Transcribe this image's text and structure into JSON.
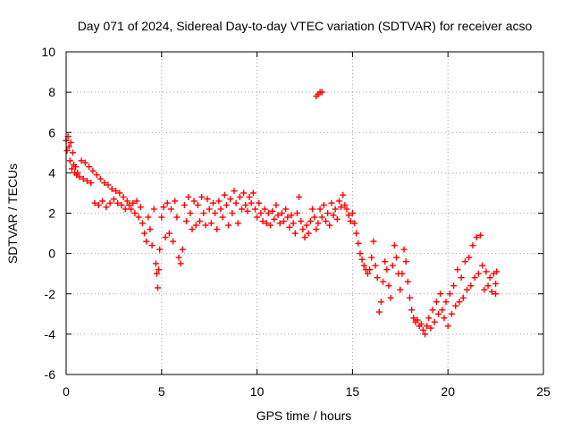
{
  "chart_data": {
    "type": "scatter",
    "title": "Day 071 of 2024, Sidereal Day-to-day VTEC variation (SDTVAR) for receiver acso",
    "xlabel": "GPS time / hours",
    "ylabel": "SDTVAR / TECUs",
    "xlim": [
      0,
      25
    ],
    "ylim": [
      -6,
      10
    ],
    "xticks": [
      0,
      5,
      10,
      15,
      20,
      25
    ],
    "yticks": [
      -6,
      -4,
      -2,
      0,
      2,
      4,
      6,
      8,
      10
    ],
    "xtick_labels": [
      "0",
      "5",
      "10",
      "15",
      "20",
      "25"
    ],
    "ytick_labels": [
      "-6",
      "-4",
      "-2",
      "0",
      "2",
      "4",
      "6",
      "8",
      "10"
    ],
    "grid": true,
    "marker": "+",
    "series": [
      {
        "name": "SDTVAR",
        "color": "#ff0000",
        "points": [
          [
            0.0,
            5.6
          ],
          [
            0.05,
            5.1
          ],
          [
            0.1,
            5.8
          ],
          [
            0.15,
            5.3
          ],
          [
            0.2,
            4.6
          ],
          [
            0.25,
            5.5
          ],
          [
            0.3,
            4.2
          ],
          [
            0.35,
            5.0
          ],
          [
            0.4,
            4.4
          ],
          [
            0.45,
            4.0
          ],
          [
            0.5,
            4.3
          ],
          [
            0.55,
            3.9
          ],
          [
            0.6,
            4.0
          ],
          [
            0.7,
            3.8
          ],
          [
            0.8,
            4.6
          ],
          [
            0.9,
            3.7
          ],
          [
            1.0,
            4.5
          ],
          [
            1.1,
            3.6
          ],
          [
            1.2,
            4.3
          ],
          [
            1.3,
            3.5
          ],
          [
            1.4,
            4.1
          ],
          [
            1.5,
            2.5
          ],
          [
            1.6,
            3.9
          ],
          [
            1.7,
            2.4
          ],
          [
            1.8,
            3.7
          ],
          [
            1.9,
            2.6
          ],
          [
            2.0,
            3.5
          ],
          [
            2.1,
            2.3
          ],
          [
            2.2,
            3.4
          ],
          [
            2.3,
            2.5
          ],
          [
            2.4,
            3.2
          ],
          [
            2.5,
            2.7
          ],
          [
            2.6,
            3.1
          ],
          [
            2.7,
            2.5
          ],
          [
            2.8,
            3.0
          ],
          [
            2.9,
            2.4
          ],
          [
            3.0,
            2.8
          ],
          [
            3.1,
            2.2
          ],
          [
            3.2,
            2.6
          ],
          [
            3.3,
            2.4
          ],
          [
            3.4,
            2.2
          ],
          [
            3.5,
            2.5
          ],
          [
            3.6,
            2.0
          ],
          [
            3.7,
            2.6
          ],
          [
            3.8,
            1.8
          ],
          [
            3.9,
            2.3
          ],
          [
            4.0,
            1.5
          ],
          [
            4.1,
            1.0
          ],
          [
            4.2,
            0.6
          ],
          [
            4.3,
            1.8
          ],
          [
            4.4,
            1.2
          ],
          [
            4.5,
            0.4
          ],
          [
            4.6,
            2.2
          ],
          [
            4.7,
            -0.5
          ],
          [
            4.75,
            -1.0
          ],
          [
            4.8,
            -1.7
          ],
          [
            4.85,
            -0.8
          ],
          [
            4.9,
            0.2
          ],
          [
            5.0,
            1.8
          ],
          [
            5.1,
            2.3
          ],
          [
            5.2,
            0.8
          ],
          [
            5.3,
            2.5
          ],
          [
            5.4,
            1.0
          ],
          [
            5.5,
            2.2
          ],
          [
            5.6,
            0.6
          ],
          [
            5.7,
            2.6
          ],
          [
            5.8,
            1.8
          ],
          [
            5.9,
            -0.2
          ],
          [
            6.0,
            -0.5
          ],
          [
            6.1,
            0.2
          ],
          [
            6.2,
            2.4
          ],
          [
            6.3,
            1.6
          ],
          [
            6.4,
            2.8
          ],
          [
            6.5,
            2.0
          ],
          [
            6.6,
            1.2
          ],
          [
            6.7,
            2.6
          ],
          [
            6.8,
            1.4
          ],
          [
            6.9,
            2.4
          ],
          [
            7.0,
            1.6
          ],
          [
            7.1,
            2.8
          ],
          [
            7.2,
            2.0
          ],
          [
            7.3,
            1.4
          ],
          [
            7.4,
            2.7
          ],
          [
            7.5,
            2.2
          ],
          [
            7.6,
            1.5
          ],
          [
            7.7,
            2.5
          ],
          [
            7.8,
            2.0
          ],
          [
            7.9,
            1.2
          ],
          [
            8.0,
            2.6
          ],
          [
            8.1,
            2.2
          ],
          [
            8.2,
            1.8
          ],
          [
            8.3,
            2.9
          ],
          [
            8.4,
            2.4
          ],
          [
            8.5,
            1.4
          ],
          [
            8.6,
            2.7
          ],
          [
            8.7,
            2.0
          ],
          [
            8.8,
            3.1
          ],
          [
            8.9,
            2.5
          ],
          [
            9.0,
            1.5
          ],
          [
            9.1,
            2.8
          ],
          [
            9.2,
            2.2
          ],
          [
            9.3,
            3.0
          ],
          [
            9.4,
            2.4
          ],
          [
            9.5,
            2.1
          ],
          [
            9.6,
            2.8
          ],
          [
            9.7,
            2.5
          ],
          [
            9.8,
            3.0
          ],
          [
            9.9,
            2.2
          ],
          [
            10.0,
            1.8
          ],
          [
            10.1,
            2.5
          ],
          [
            10.2,
            2.0
          ],
          [
            10.3,
            1.6
          ],
          [
            10.4,
            2.2
          ],
          [
            10.5,
            1.5
          ],
          [
            10.6,
            2.0
          ],
          [
            10.7,
            1.4
          ],
          [
            10.8,
            2.1
          ],
          [
            10.9,
            1.7
          ],
          [
            11.0,
            2.4
          ],
          [
            11.1,
            1.9
          ],
          [
            11.2,
            1.5
          ],
          [
            11.3,
            2.0
          ],
          [
            11.4,
            1.6
          ],
          [
            11.5,
            2.2
          ],
          [
            11.6,
            1.8
          ],
          [
            11.7,
            1.3
          ],
          [
            11.8,
            1.9
          ],
          [
            11.9,
            1.5
          ],
          [
            12.0,
            1.0
          ],
          [
            12.1,
            2.0
          ],
          [
            12.2,
            2.8
          ],
          [
            12.3,
            1.6
          ],
          [
            12.4,
            1.2
          ],
          [
            12.5,
            0.8
          ],
          [
            12.6,
            1.4
          ],
          [
            12.7,
            1.0
          ],
          [
            12.8,
            1.6
          ],
          [
            12.9,
            2.2
          ],
          [
            13.0,
            1.8
          ],
          [
            13.1,
            1.2
          ],
          [
            13.2,
            1.5
          ],
          [
            13.3,
            2.2
          ],
          [
            13.4,
            1.8
          ],
          [
            13.5,
            2.4
          ],
          [
            13.6,
            1.6
          ],
          [
            13.7,
            2.0
          ],
          [
            13.8,
            1.4
          ],
          [
            13.9,
            2.5
          ],
          [
            14.0,
            1.9
          ],
          [
            14.1,
            2.2
          ],
          [
            14.2,
            1.7
          ],
          [
            14.3,
            2.6
          ],
          [
            14.4,
            2.3
          ],
          [
            14.5,
            2.9
          ],
          [
            14.6,
            2.4
          ],
          [
            14.7,
            2.2
          ],
          [
            14.8,
            1.9
          ],
          [
            14.9,
            1.6
          ],
          [
            15.0,
            2.0
          ],
          [
            15.1,
            1.5
          ],
          [
            15.2,
            1.0
          ],
          [
            15.3,
            0.5
          ],
          [
            15.4,
            0.0
          ],
          [
            15.5,
            -0.3
          ],
          [
            15.6,
            -0.6
          ],
          [
            15.7,
            -0.8
          ],
          [
            15.8,
            -1.0
          ],
          [
            15.9,
            -0.8
          ],
          [
            16.0,
            -0.2
          ],
          [
            16.1,
            0.6
          ],
          [
            16.2,
            -0.6
          ],
          [
            16.3,
            -1.2
          ],
          [
            16.4,
            -2.9
          ],
          [
            16.5,
            -2.4
          ],
          [
            16.6,
            -1.4
          ],
          [
            16.7,
            -0.4
          ],
          [
            16.8,
            -0.8
          ],
          [
            16.9,
            -1.6
          ],
          [
            17.0,
            -2.2
          ],
          [
            17.1,
            -0.6
          ],
          [
            17.2,
            0.4
          ],
          [
            17.3,
            -0.2
          ],
          [
            17.4,
            -1.0
          ],
          [
            17.5,
            -1.8
          ],
          [
            17.6,
            -1.0
          ],
          [
            17.7,
            0.2
          ],
          [
            17.8,
            -0.4
          ],
          [
            17.9,
            -1.4
          ],
          [
            18.0,
            -2.2
          ],
          [
            18.1,
            -2.8
          ],
          [
            18.2,
            -3.2
          ],
          [
            18.3,
            -3.4
          ],
          [
            18.4,
            -3.3
          ],
          [
            18.5,
            -3.6
          ],
          [
            18.6,
            -3.5
          ],
          [
            18.7,
            -3.8
          ],
          [
            18.8,
            -4.0
          ],
          [
            18.9,
            -3.6
          ],
          [
            19.0,
            -3.2
          ],
          [
            19.1,
            -3.7
          ],
          [
            19.2,
            -2.8
          ],
          [
            19.3,
            -3.4
          ],
          [
            19.4,
            -2.4
          ],
          [
            19.5,
            -3.0
          ],
          [
            19.6,
            -2.0
          ],
          [
            19.7,
            -2.8
          ],
          [
            19.8,
            -3.2
          ],
          [
            19.9,
            -2.4
          ],
          [
            20.0,
            -3.6
          ],
          [
            20.1,
            -2.0
          ],
          [
            20.2,
            -3.0
          ],
          [
            20.3,
            -1.6
          ],
          [
            20.4,
            -2.6
          ],
          [
            20.5,
            -0.8
          ],
          [
            20.6,
            -2.4
          ],
          [
            20.7,
            -1.2
          ],
          [
            20.8,
            -2.2
          ],
          [
            20.9,
            -0.4
          ],
          [
            21.0,
            -1.8
          ],
          [
            21.1,
            -0.2
          ],
          [
            21.2,
            -1.6
          ],
          [
            21.3,
            0.4
          ],
          [
            21.4,
            -1.2
          ],
          [
            21.5,
            0.8
          ],
          [
            21.6,
            -1.0
          ],
          [
            21.7,
            0.9
          ],
          [
            21.8,
            -0.6
          ],
          [
            21.9,
            -1.8
          ],
          [
            22.0,
            -0.9
          ],
          [
            22.1,
            -1.6
          ],
          [
            22.2,
            -1.2
          ],
          [
            22.3,
            -1.9
          ],
          [
            22.4,
            -1.0
          ],
          [
            22.5,
            -2.0
          ],
          [
            22.5,
            -1.5
          ],
          [
            22.55,
            -0.9
          ],
          [
            13.1,
            7.8
          ],
          [
            13.2,
            7.9
          ],
          [
            13.3,
            8.0
          ],
          [
            13.4,
            8.0
          ]
        ]
      }
    ]
  }
}
